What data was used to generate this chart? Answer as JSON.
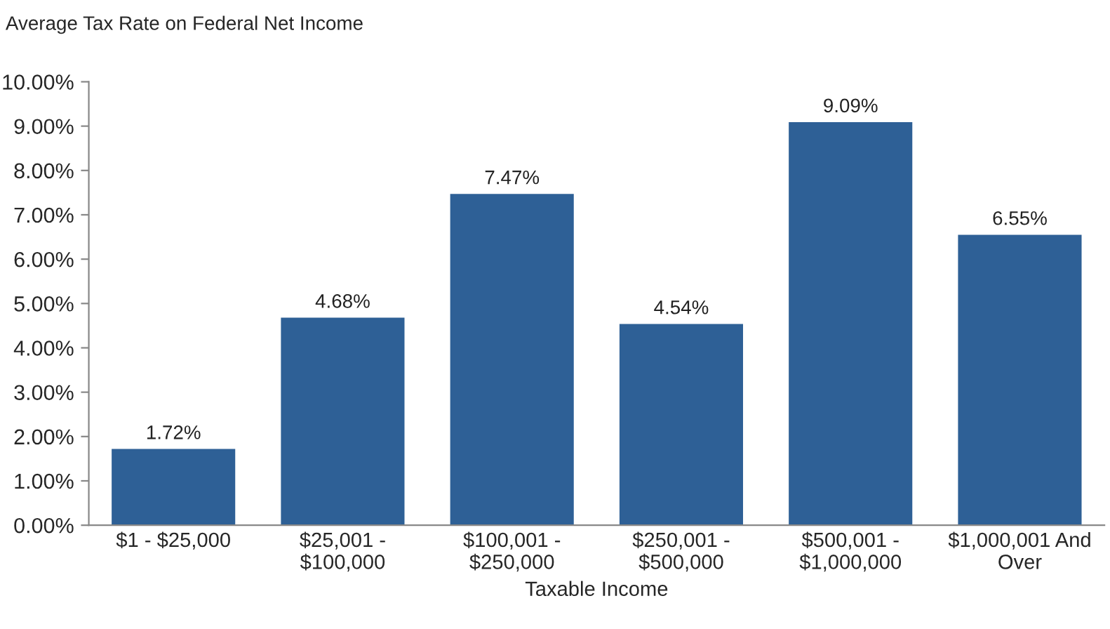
{
  "chart_data": {
    "type": "bar",
    "title": "Average Tax Rate on Federal Net Income",
    "xlabel": "Taxable Income",
    "categories": [
      "$1 - $25,000",
      "$25,001 -\n$100,000",
      "$100,001 -\n$250,000",
      "$250,001 -\n$500,000",
      "$500,001 -\n$1,000,000",
      "$1,000,001 And\nOver"
    ],
    "values": [
      1.72,
      4.68,
      7.47,
      4.54,
      9.09,
      6.55
    ],
    "value_labels": [
      "1.72%",
      "4.68%",
      "7.47%",
      "4.54%",
      "9.09%",
      "6.55%"
    ],
    "color": "#2e6096",
    "ylim": [
      0,
      10
    ],
    "yticks": [
      {
        "value": 0,
        "label": "0.00%"
      },
      {
        "value": 1,
        "label": "1.00%"
      },
      {
        "value": 2,
        "label": "2.00%"
      },
      {
        "value": 3,
        "label": "3.00%"
      },
      {
        "value": 4,
        "label": "4.00%"
      },
      {
        "value": 5,
        "label": "5.00%"
      },
      {
        "value": 6,
        "label": "6.00%"
      },
      {
        "value": 7,
        "label": "7.00%"
      },
      {
        "value": 8,
        "label": "8.00%"
      },
      {
        "value": 9,
        "label": "9.00%"
      },
      {
        "value": 10,
        "label": "10.00%"
      }
    ],
    "grid": false,
    "legend": false
  }
}
